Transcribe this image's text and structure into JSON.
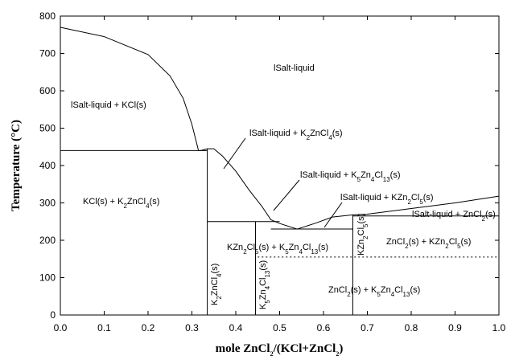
{
  "chart_data": {
    "type": "line",
    "xlabel": "mole ZnCl2/(KCl+ZnCl2)",
    "ylabel": "Temperature (°C)",
    "xlim": [
      0,
      1
    ],
    "ylim": [
      0,
      800
    ],
    "xticks": [
      {
        "value": 0,
        "label": "0.0"
      },
      0.1,
      0.2,
      0.3,
      0.4,
      0.5,
      0.6,
      0.7,
      0.8,
      0.9,
      {
        "value": 1,
        "label": "1.0"
      }
    ],
    "yticks": [
      0,
      100,
      200,
      300,
      400,
      500,
      600,
      700,
      800
    ],
    "color": "#000000",
    "series": [
      {
        "x": [
          0,
          0.1,
          0.2,
          0.25,
          0.28,
          0.3,
          0.315,
          0.32,
          0.335,
          0.35,
          0.37,
          0.4,
          0.43,
          0.46,
          0.48,
          0.5,
          0.54,
          0.58,
          0.62,
          0.667,
          0.7,
          0.8,
          0.9,
          1.0
        ],
        "values": [
          770,
          745,
          697,
          640,
          580,
          510,
          440,
          440,
          445,
          445,
          425,
          385,
          335,
          290,
          255,
          245,
          230,
          245,
          262,
          268,
          270,
          285,
          300,
          318
        ]
      },
      {
        "x": [
          0,
          0.335
        ],
        "values": [
          440,
          440
        ]
      },
      {
        "x": [
          0.335,
          0.335
        ],
        "values": [
          0,
          445
        ]
      },
      {
        "x": [
          0.335,
          0.5
        ],
        "values": [
          250,
          250
        ]
      },
      {
        "x": [
          0.445,
          0.445
        ],
        "values": [
          0,
          250
        ]
      },
      {
        "x": [
          0.48,
          0.667
        ],
        "values": [
          230,
          230
        ]
      },
      {
        "x": [
          0.667,
          0.667
        ],
        "values": [
          0,
          268
        ]
      },
      {
        "x": [
          0.667,
          1.0
        ],
        "values": [
          265,
          265
        ]
      },
      {
        "x": [
          0.45,
          1.0
        ],
        "values": [
          155,
          155
        ],
        "dashed": true
      }
    ],
    "annotations": [
      "lSalt-liquid",
      "lSalt-liquid + KCl(s)",
      "lSalt-liquid + K2ZnCl4(s)",
      "lSalt-liquid + K5Zn4Cl13(s)",
      "lSalt-liquid + KZn2Cl5(s)",
      "lSalt-liquid + ZnCl2(s)",
      "KCl(s) + K2ZnCl4(s)",
      "KZn2Cl5(s) + K5Zn4Cl13(s)",
      "ZnCl2(s) + KZn2Cl5(s)",
      "ZnCl2(s) + K5Zn4Cl13(s)",
      "K2ZnCl4(s)",
      "K5Zn4Cl13(s)",
      "KZn2Cl5(s)"
    ]
  }
}
